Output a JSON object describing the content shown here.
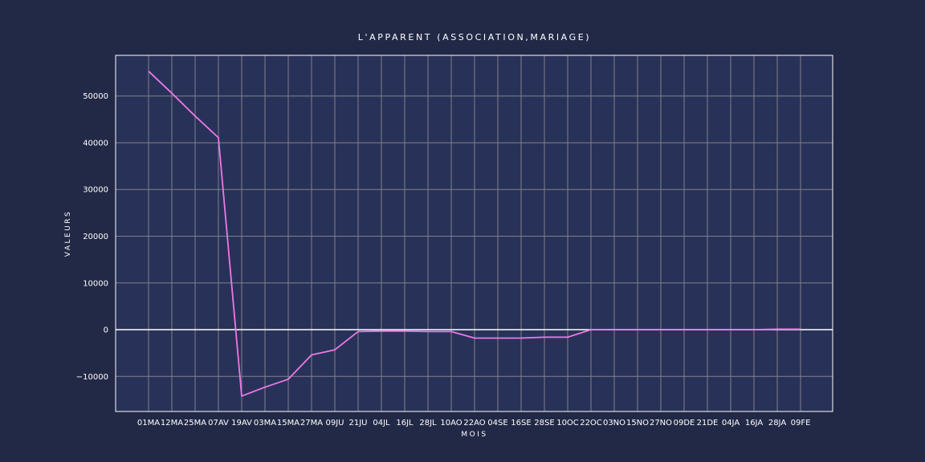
{
  "chart_data": {
    "type": "line",
    "title": "L'APPARENT (ASSOCIATION,MARIAGE)",
    "xlabel": "MOIS",
    "ylabel": "VALEURS",
    "categories": [
      "01MA",
      "12MA",
      "25MA",
      "07AV",
      "19AV",
      "03MA",
      "15MA",
      "27MA",
      "09JU",
      "21JU",
      "04JL",
      "16JL",
      "28JL",
      "10AO",
      "22AO",
      "04SE",
      "16SE",
      "28SE",
      "10OC",
      "22OC",
      "03NO",
      "15NO",
      "27NO",
      "09DE",
      "21DE",
      "04JA",
      "16JA",
      "28JA",
      "09FE"
    ],
    "series": [
      {
        "values": [
          55300,
          50600,
          45700,
          41100,
          -14200,
          -12300,
          -10600,
          -5400,
          -4300,
          -400,
          -300,
          -300,
          -400,
          -400,
          -1800,
          -1800,
          -1800,
          -1600,
          -1600,
          0,
          0,
          0,
          0,
          0,
          0,
          0,
          0,
          100,
          100
        ]
      }
    ],
    "ylim": [
      -17500,
      58700
    ],
    "yticks": [
      -10000,
      0,
      10000,
      20000,
      30000,
      40000,
      50000
    ],
    "ytick_labels": [
      "−10000",
      "0",
      "10000",
      "20000",
      "30000",
      "40000",
      "50000"
    ],
    "grid": true,
    "colors": {
      "background": "#222946",
      "plot_background": "#283258",
      "grid": "#80808c",
      "line": "#ee78e6",
      "zero_line": "#ffffff"
    }
  }
}
